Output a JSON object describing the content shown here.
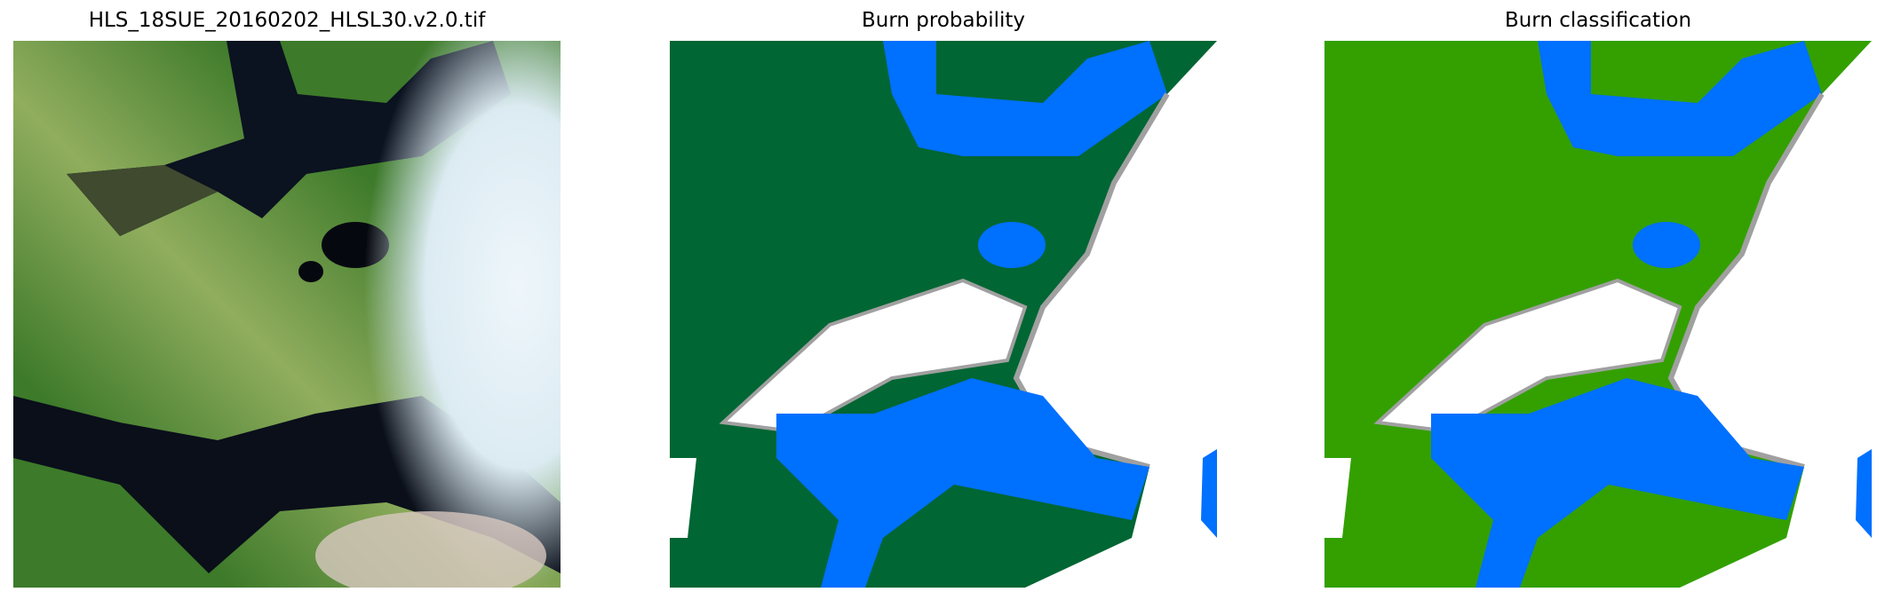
{
  "panels": [
    {
      "title": "HLS_18SUE_20160202_HLSL30.v2.0.tif",
      "kind": "rgb-satellite-image"
    },
    {
      "title": "Burn probability",
      "kind": "probability-map"
    },
    {
      "title": "Burn classification",
      "kind": "classification-map"
    }
  ],
  "colors": {
    "probability_land": "#006633",
    "classification_land": "#33a000",
    "water": "#0070ff",
    "cloud": "#ffffff",
    "cloud_edge": "#a0a0a0",
    "satellite_vegetation": "#3d7a2a",
    "satellite_water": "#0a0f1a",
    "satellite_cloud": "#e6f2f8"
  }
}
